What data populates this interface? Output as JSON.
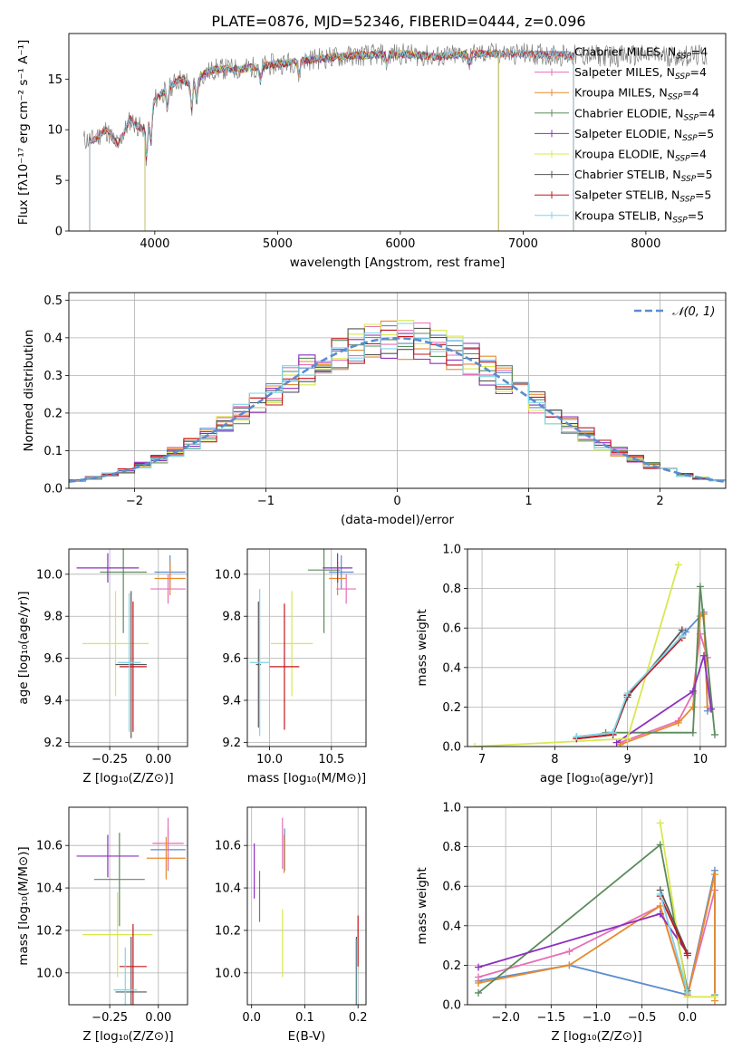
{
  "title": "PLATE=0876, MJD=52346, FIBERID=0444, z=0.096",
  "colors": {
    "Chabrier MILES": "#5b8ccf",
    "Salpeter MILES": "#e76fb7",
    "Kroupa MILES": "#e88a2c",
    "Chabrier ELODIE": "#5c8b5c",
    "Salpeter ELODIE": "#8e2fbf",
    "Kroupa ELODIE": "#d8e84f",
    "Chabrier STELIB": "#555555",
    "Salpeter STELIB": "#c4161c",
    "Kroupa STELIB": "#7dd6e8",
    "normal": "#5b8ccf",
    "grid": "#b0b0b0"
  },
  "chart_data": [
    {
      "id": "spectrum",
      "type": "line",
      "xlabel": "wavelength [Angstrom, rest frame]",
      "ylabel": "Flux [fλ10⁻¹⁷ erg cm⁻² s⁻¹ A⁻¹]",
      "xlim": [
        3300,
        8650
      ],
      "ylim": [
        0,
        19.5
      ],
      "xticks": [
        4000,
        5000,
        6000,
        7000,
        8000
      ],
      "yticks": [
        0,
        5,
        10,
        15
      ],
      "grid": false,
      "legend_position": "right",
      "series": [
        {
          "name": "Chabrier MILES, N_SSP=4",
          "x": [
            3400,
            3500,
            3600,
            3700,
            3800,
            3900,
            4000,
            4100,
            4200,
            4300,
            4400,
            4500,
            4700,
            5000,
            5300,
            5600,
            6000,
            6300,
            6600,
            7000,
            7400
          ],
          "y": [
            9,
            9,
            10,
            8.5,
            11,
            10,
            13,
            14,
            15,
            14.5,
            15.5,
            16,
            16,
            16.5,
            17,
            17.3,
            17.5,
            17.2,
            17.5,
            17.5,
            17.3
          ]
        },
        {
          "name": "Salpeter MILES, N_SSP=4"
        },
        {
          "name": "Kroupa MILES, N_SSP=4"
        },
        {
          "name": "Chabrier ELODIE, N_SSP=4"
        },
        {
          "name": "Salpeter ELODIE, N_SSP=5"
        },
        {
          "name": "Kroupa ELODIE, N_SSP=4"
        },
        {
          "name": "Chabrier STELIB, N_SSP=5"
        },
        {
          "name": "Salpeter STELIB, N_SSP=5"
        },
        {
          "name": "Kroupa STELIB, N_SSP=5"
        }
      ]
    },
    {
      "id": "residuals",
      "type": "line",
      "xlabel": "(data-model)/error",
      "ylabel": "Normed distribution",
      "xlim": [
        -2.5,
        2.5
      ],
      "ylim": [
        0,
        0.52
      ],
      "xticks": [
        -2,
        -1,
        0,
        1,
        2
      ],
      "yticks": [
        0.0,
        0.1,
        0.2,
        0.3,
        0.4,
        0.5
      ],
      "grid": true,
      "legend_position": "top-right",
      "normal_curve": {
        "name": "𝒩(0, 1)",
        "mean": 0,
        "sigma": 1
      }
    },
    {
      "id": "age-vs-Z",
      "type": "scatter",
      "xlabel": "Z [log₁₀(Z/Z⊙)]",
      "ylabel": "age  [log₁₀(age/yr)]",
      "xlim": [
        -0.46,
        0.15
      ],
      "ylim": [
        9.18,
        10.12
      ],
      "xticks": [
        -0.25,
        0.0
      ],
      "xticklabels": [
        "−0.25",
        "0.00"
      ],
      "yticks": [
        9.2,
        9.4,
        9.6,
        9.8,
        10.0
      ],
      "grid": true,
      "points": [
        {
          "series": "Chabrier MILES",
          "x": 0.06,
          "y": 10.01,
          "xerr": 0.08,
          "yerr": 0.08
        },
        {
          "series": "Salpeter MILES",
          "x": 0.05,
          "y": 9.93,
          "xerr": 0.09,
          "yerr": 0.07
        },
        {
          "series": "Kroupa MILES",
          "x": 0.06,
          "y": 9.98,
          "xerr": 0.08,
          "yerr": 0.08
        },
        {
          "series": "Chabrier ELODIE",
          "x": -0.18,
          "y": 10.01,
          "xerr": 0.12,
          "yerr": 0.29
        },
        {
          "series": "Salpeter ELODIE",
          "x": -0.26,
          "y": 10.03,
          "xerr": 0.16,
          "yerr": 0.07
        },
        {
          "series": "Kroupa ELODIE",
          "x": -0.22,
          "y": 9.67,
          "xerr": 0.17,
          "yerr": 0.25
        },
        {
          "series": "Chabrier STELIB",
          "x": -0.14,
          "y": 9.57,
          "xerr": 0.08,
          "yerr": 0.35
        },
        {
          "series": "Salpeter STELIB",
          "x": -0.13,
          "y": 9.56,
          "xerr": 0.07,
          "yerr": 0.31
        },
        {
          "series": "Kroupa STELIB",
          "x": -0.15,
          "y": 9.58,
          "xerr": 0.06,
          "yerr": 0.33
        }
      ]
    },
    {
      "id": "age-vs-mass",
      "type": "scatter",
      "xlabel": "mass [log₁₀(M/M⊙)]",
      "ylabel": "",
      "xlim": [
        9.82,
        10.78
      ],
      "ylim": [
        9.18,
        10.12
      ],
      "xticks": [
        10.0,
        10.5
      ],
      "yticks": [
        9.2,
        9.4,
        9.6,
        9.8,
        10.0
      ],
      "grid": true,
      "points": [
        {
          "series": "Chabrier MILES",
          "x": 10.58,
          "y": 10.01,
          "xerr": 0.1,
          "yerr": 0.08
        },
        {
          "series": "Salpeter MILES",
          "x": 10.62,
          "y": 9.93,
          "xerr": 0.08,
          "yerr": 0.07
        },
        {
          "series": "Kroupa MILES",
          "x": 10.55,
          "y": 9.98,
          "xerr": 0.07,
          "yerr": 0.08
        },
        {
          "series": "Chabrier ELODIE",
          "x": 10.44,
          "y": 10.02,
          "xerr": 0.13,
          "yerr": 0.3
        },
        {
          "series": "Salpeter ELODIE",
          "x": 10.55,
          "y": 10.03,
          "xerr": 0.12,
          "yerr": 0.07
        },
        {
          "series": "Kroupa ELODIE",
          "x": 10.18,
          "y": 9.67,
          "xerr": 0.17,
          "yerr": 0.25
        },
        {
          "series": "Chabrier STELIB",
          "x": 9.91,
          "y": 9.57,
          "xerr": 0.02,
          "yerr": 0.3
        },
        {
          "series": "Salpeter STELIB",
          "x": 10.12,
          "y": 9.56,
          "xerr": 0.12,
          "yerr": 0.3
        },
        {
          "series": "Kroupa STELIB",
          "x": 9.92,
          "y": 9.58,
          "xerr": 0.08,
          "yerr": 0.35
        }
      ]
    },
    {
      "id": "weight-vs-age",
      "type": "line",
      "xlabel": "age  [log₁₀(age/yr)]",
      "ylabel": "mass weight",
      "xlim": [
        6.8,
        10.35
      ],
      "ylim": [
        0,
        1.0
      ],
      "xticks": [
        7,
        8,
        9,
        10
      ],
      "yticks": [
        0.0,
        0.2,
        0.4,
        0.6,
        0.8,
        1.0
      ],
      "grid": true,
      "series": [
        {
          "name": "Chabrier MILES",
          "x": [
            8.3,
            8.8,
            9.0,
            9.8,
            10.05,
            10.1
          ],
          "y": [
            0.05,
            0.07,
            0.26,
            0.58,
            0.68,
            0.18
          ]
        },
        {
          "name": "Salpeter MILES",
          "x": [
            8.9,
            9.7,
            9.9,
            10.0,
            10.1,
            10.15
          ],
          "y": [
            0.02,
            0.13,
            0.27,
            0.57,
            0.45,
            0.19
          ]
        },
        {
          "name": "Kroupa MILES",
          "x": [
            8.9,
            9.7,
            9.9,
            10.0,
            10.05,
            10.1
          ],
          "y": [
            0.01,
            0.12,
            0.2,
            0.66,
            0.67,
            0.2
          ]
        },
        {
          "name": "Chabrier ELODIE",
          "x": [
            8.7,
            9.9,
            10.0,
            10.2
          ],
          "y": [
            0.07,
            0.07,
            0.81,
            0.06
          ]
        },
        {
          "name": "Salpeter ELODIE",
          "x": [
            8.85,
            9.9,
            10.05,
            10.15
          ],
          "y": [
            0.02,
            0.28,
            0.46,
            0.19
          ]
        },
        {
          "name": "Kroupa ELODIE",
          "x": [
            6.9,
            9.0,
            9.7
          ],
          "y": [
            0.0,
            0.04,
            0.92
          ]
        },
        {
          "name": "Chabrier STELIB",
          "x": [
            8.3,
            8.8,
            9.0,
            9.75
          ],
          "y": [
            0.04,
            0.06,
            0.25,
            0.59
          ]
        },
        {
          "name": "Salpeter STELIB",
          "x": [
            8.3,
            8.8,
            9.0,
            9.75
          ],
          "y": [
            0.04,
            0.06,
            0.26,
            0.55
          ]
        },
        {
          "name": "Kroupa STELIB",
          "x": [
            8.3,
            8.8,
            9.0,
            9.75
          ],
          "y": [
            0.05,
            0.07,
            0.27,
            0.56
          ]
        }
      ]
    },
    {
      "id": "mass-vs-Z",
      "type": "scatter",
      "xlabel": "Z [log₁₀(Z/Z⊙)]",
      "ylabel": "mass [log₁₀(M/M⊙)]",
      "xlim": [
        -0.46,
        0.15
      ],
      "ylim": [
        9.85,
        10.78
      ],
      "xticks": [
        -0.25,
        0.0
      ],
      "xticklabels": [
        "−0.25",
        "0.00"
      ],
      "yticks": [
        10.0,
        10.2,
        10.4,
        10.6
      ],
      "grid": true,
      "points": [
        {
          "series": "Chabrier MILES",
          "x": 0.05,
          "y": 10.58,
          "xerr": 0.09,
          "yerr": 0.1
        },
        {
          "series": "Salpeter MILES",
          "x": 0.05,
          "y": 10.61,
          "xerr": 0.08,
          "yerr": 0.12
        },
        {
          "series": "Kroupa MILES",
          "x": 0.04,
          "y": 10.54,
          "xerr": 0.1,
          "yerr": 0.1
        },
        {
          "series": "Chabrier ELODIE",
          "x": -0.2,
          "y": 10.44,
          "xerr": 0.13,
          "yerr": 0.22
        },
        {
          "series": "Salpeter ELODIE",
          "x": -0.26,
          "y": 10.55,
          "xerr": 0.16,
          "yerr": 0.1
        },
        {
          "series": "Kroupa ELODIE",
          "x": -0.21,
          "y": 10.18,
          "xerr": 0.18,
          "yerr": 0.2
        },
        {
          "series": "Chabrier STELIB",
          "x": -0.14,
          "y": 9.91,
          "xerr": 0.08,
          "yerr": 0.26
        },
        {
          "series": "Salpeter STELIB",
          "x": -0.13,
          "y": 10.03,
          "xerr": 0.07,
          "yerr": 0.2
        },
        {
          "series": "Kroupa STELIB",
          "x": -0.17,
          "y": 9.92,
          "xerr": 0.06,
          "yerr": 0.2
        }
      ]
    },
    {
      "id": "mass-vs-EBV",
      "type": "scatter",
      "xlabel": "E(B-V)",
      "ylabel": "",
      "xlim": [
        -0.008,
        0.215
      ],
      "ylim": [
        9.85,
        10.78
      ],
      "xticks": [
        0.0,
        0.1,
        0.2
      ],
      "yticks": [
        10.0,
        10.2,
        10.4,
        10.6
      ],
      "grid": true,
      "points": [
        {
          "series": "Chabrier MILES",
          "x": 0.062,
          "y": 10.58,
          "xerr": 0,
          "yerr": 0.1
        },
        {
          "series": "Salpeter MILES",
          "x": 0.058,
          "y": 10.61,
          "xerr": 0,
          "yerr": 0.12
        },
        {
          "series": "Kroupa MILES",
          "x": 0.061,
          "y": 10.56,
          "xerr": 0,
          "yerr": 0.09
        },
        {
          "series": "Chabrier ELODIE",
          "x": 0.015,
          "y": 10.36,
          "xerr": 0,
          "yerr": 0.12
        },
        {
          "series": "Salpeter ELODIE",
          "x": 0.005,
          "y": 10.48,
          "xerr": 0,
          "yerr": 0.13
        },
        {
          "series": "Kroupa ELODIE",
          "x": 0.058,
          "y": 10.14,
          "xerr": 0,
          "yerr": 0.16
        },
        {
          "series": "Chabrier STELIB",
          "x": 0.197,
          "y": 9.92,
          "xerr": 0,
          "yerr": 0.25
        },
        {
          "series": "Salpeter STELIB",
          "x": 0.2,
          "y": 10.15,
          "xerr": 0,
          "yerr": 0.12
        },
        {
          "series": "Kroupa STELIB",
          "x": 0.196,
          "y": 9.98,
          "xerr": 0,
          "yerr": 0.18
        }
      ]
    },
    {
      "id": "weight-vs-Z",
      "type": "line",
      "xlabel": "Z [log₁₀(Z/Z⊙)]",
      "ylabel": "mass weight",
      "xlim": [
        -2.42,
        0.42
      ],
      "ylim": [
        0,
        1.0
      ],
      "xticks": [
        -2.0,
        -1.5,
        -1.0,
        -0.5,
        0.0
      ],
      "xticklabels": [
        "−2.0",
        "−1.5",
        "−1.0",
        "−0.5",
        "0.0"
      ],
      "yticks": [
        0.0,
        0.2,
        0.4,
        0.6,
        0.8,
        1.0
      ],
      "grid": true,
      "series": [
        {
          "name": "Chabrier MILES",
          "x": [
            -2.3,
            -1.3,
            0.0,
            0.3,
            0.3
          ],
          "y": [
            0.12,
            0.2,
            0.05,
            0.68,
            0.05
          ]
        },
        {
          "name": "Salpeter MILES",
          "x": [
            -2.3,
            -1.3,
            -0.3,
            0.0,
            0.3
          ],
          "y": [
            0.14,
            0.27,
            0.5,
            0.05,
            0.58
          ]
        },
        {
          "name": "Kroupa MILES",
          "x": [
            -2.3,
            -1.3,
            -0.3,
            0.0,
            0.3,
            0.3
          ],
          "y": [
            0.11,
            0.2,
            0.5,
            0.04,
            0.66,
            0.02
          ]
        },
        {
          "name": "Chabrier ELODIE",
          "x": [
            -2.3,
            -0.3,
            0.0
          ],
          "y": [
            0.06,
            0.81,
            0.07
          ]
        },
        {
          "name": "Salpeter ELODIE",
          "x": [
            -2.3,
            -0.3,
            0.0
          ],
          "y": [
            0.19,
            0.46,
            0.26
          ]
        },
        {
          "name": "Kroupa ELODIE",
          "x": [
            -0.3,
            0.0,
            0.3
          ],
          "y": [
            0.92,
            0.04,
            0.04
          ]
        },
        {
          "name": "Chabrier STELIB",
          "x": [
            -0.3,
            0.0
          ],
          "y": [
            0.58,
            0.26
          ]
        },
        {
          "name": "Salpeter STELIB",
          "x": [
            -0.3,
            0.0
          ],
          "y": [
            0.55,
            0.25
          ]
        },
        {
          "name": "Kroupa STELIB",
          "x": [
            -0.3,
            0.0
          ],
          "y": [
            0.56,
            0.06
          ]
        }
      ]
    }
  ]
}
